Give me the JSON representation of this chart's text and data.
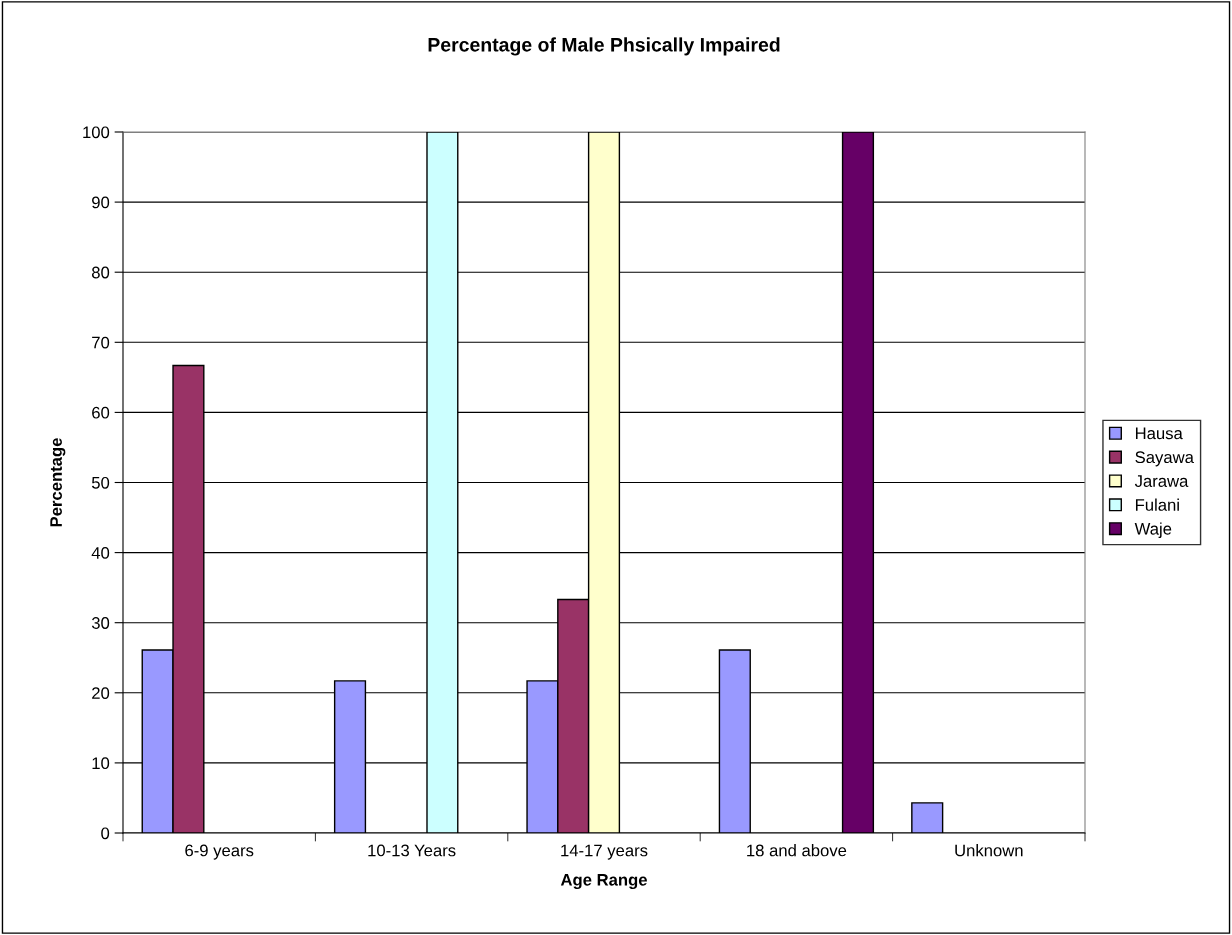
{
  "chart_data": {
    "type": "bar",
    "title": "Percentage of Male Phsically Impaired",
    "xlabel": "Age Range",
    "ylabel": "Percentage",
    "categories": [
      "6-9 years",
      "10-13 Years",
      "14-17 years",
      "18 and above",
      "Unknown"
    ],
    "series": [
      {
        "name": "Hausa",
        "color": "#9999ff",
        "values": [
          26.1,
          21.7,
          21.7,
          26.1,
          4.3
        ]
      },
      {
        "name": "Sayawa",
        "color": "#993366",
        "values": [
          66.7,
          null,
          33.3,
          null,
          null
        ]
      },
      {
        "name": "Jarawa",
        "color": "#ffffcc",
        "values": [
          null,
          null,
          100,
          null,
          null
        ]
      },
      {
        "name": "Fulani",
        "color": "#ccffff",
        "values": [
          null,
          100,
          null,
          null,
          null
        ]
      },
      {
        "name": "Waje",
        "color": "#660066",
        "values": [
          null,
          null,
          null,
          100,
          null
        ]
      }
    ],
    "ylim": [
      0,
      100
    ],
    "yticks": [
      0,
      10,
      20,
      30,
      40,
      50,
      60,
      70,
      80,
      90,
      100
    ],
    "grid": "y",
    "legend": "right"
  }
}
